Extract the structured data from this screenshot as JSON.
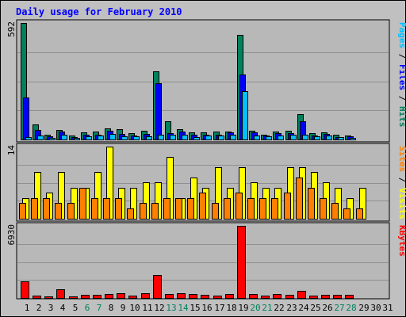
{
  "chart_data": {
    "type": "bar",
    "title": "Daily usage for February 2010",
    "colors": {
      "background": "#c0c0c0",
      "plot": "#b8b8b8",
      "title": "#0000ff",
      "hits": "#00805c",
      "files": "#0000ff",
      "pages": "#00c0ff",
      "visits": "#ffff00",
      "sites": "#ff8000",
      "kbytes": "#ff0000",
      "weekend": "#00805c",
      "weekday": "#000000"
    },
    "categories": [
      "1",
      "2",
      "3",
      "4",
      "5",
      "6",
      "7",
      "8",
      "9",
      "10",
      "11",
      "12",
      "13",
      "14",
      "15",
      "16",
      "17",
      "18",
      "19",
      "20",
      "21",
      "22",
      "23",
      "24",
      "25",
      "26",
      "27",
      "28",
      "29",
      "30",
      "31"
    ],
    "weekend_days": [
      6,
      7,
      13,
      14,
      20,
      21,
      27,
      28
    ],
    "panels": [
      {
        "name": "hits_files_pages",
        "ymax": 592,
        "ymax_label": "592",
        "legend": [
          "Pages",
          "/",
          "Files",
          "/",
          "Hits"
        ],
        "series": [
          {
            "name": "Hits",
            "values": [
              592,
              75,
              26,
              50,
              20,
              37,
              41,
              57,
              54,
              33,
              46,
              347,
              92,
              52,
              38,
              35,
              39,
              42,
              532,
              46,
              26,
              42,
              46,
              128,
              32,
              36,
              24,
              22,
              0,
              0,
              0
            ]
          },
          {
            "name": "Files",
            "values": [
              212,
              50,
              16,
              41,
              13,
              26,
              24,
              44,
              29,
              21,
              29,
              286,
              31,
              41,
              24,
              25,
              26,
              36,
              331,
              36,
              20,
              31,
              34,
              92,
              22,
              28,
              14,
              17,
              0,
              0,
              0
            ]
          },
          {
            "name": "Pages",
            "values": [
              13,
              20,
              9,
              26,
              7,
              15,
              20,
              29,
              18,
              15,
              18,
              24,
              26,
              24,
              14,
              20,
              21,
              26,
              244,
              20,
              15,
              20,
              24,
              26,
              15,
              20,
              12,
              9,
              0,
              0,
              0
            ]
          }
        ]
      },
      {
        "name": "visits_sites",
        "ymax": 14,
        "ymax_label": "14",
        "legend": [
          "Sites",
          "/",
          "Visits"
        ],
        "series": [
          {
            "name": "Visits",
            "values": [
              4,
              9,
              5,
              9,
              6,
              6,
              9,
              14,
              6,
              6,
              7,
              7,
              12,
              4,
              8,
              6,
              10,
              6,
              10,
              7,
              6,
              6,
              10,
              10,
              9,
              7,
              6,
              4,
              6,
              0,
              0
            ]
          },
          {
            "name": "Sites",
            "values": [
              3,
              4,
              4,
              3,
              3,
              6,
              4,
              4,
              4,
              2,
              3,
              3,
              4,
              4,
              4,
              5,
              3,
              4,
              5,
              4,
              4,
              4,
              5,
              8,
              6,
              4,
              3,
              2,
              2,
              0,
              0
            ]
          }
        ]
      },
      {
        "name": "kbytes",
        "ymax": 6930,
        "ymax_label": "6930",
        "legend": [
          "KBytes"
        ],
        "series": [
          {
            "name": "KBytes",
            "values": [
              1600,
              250,
              190,
              830,
              180,
              270,
              340,
              360,
              440,
              210,
              450,
              2220,
              370,
              420,
              370,
              310,
              240,
              370,
              6930,
              370,
              230,
              400,
              330,
              660,
              260,
              300,
              280,
              270,
              0,
              0,
              0
            ]
          }
        ]
      }
    ]
  }
}
